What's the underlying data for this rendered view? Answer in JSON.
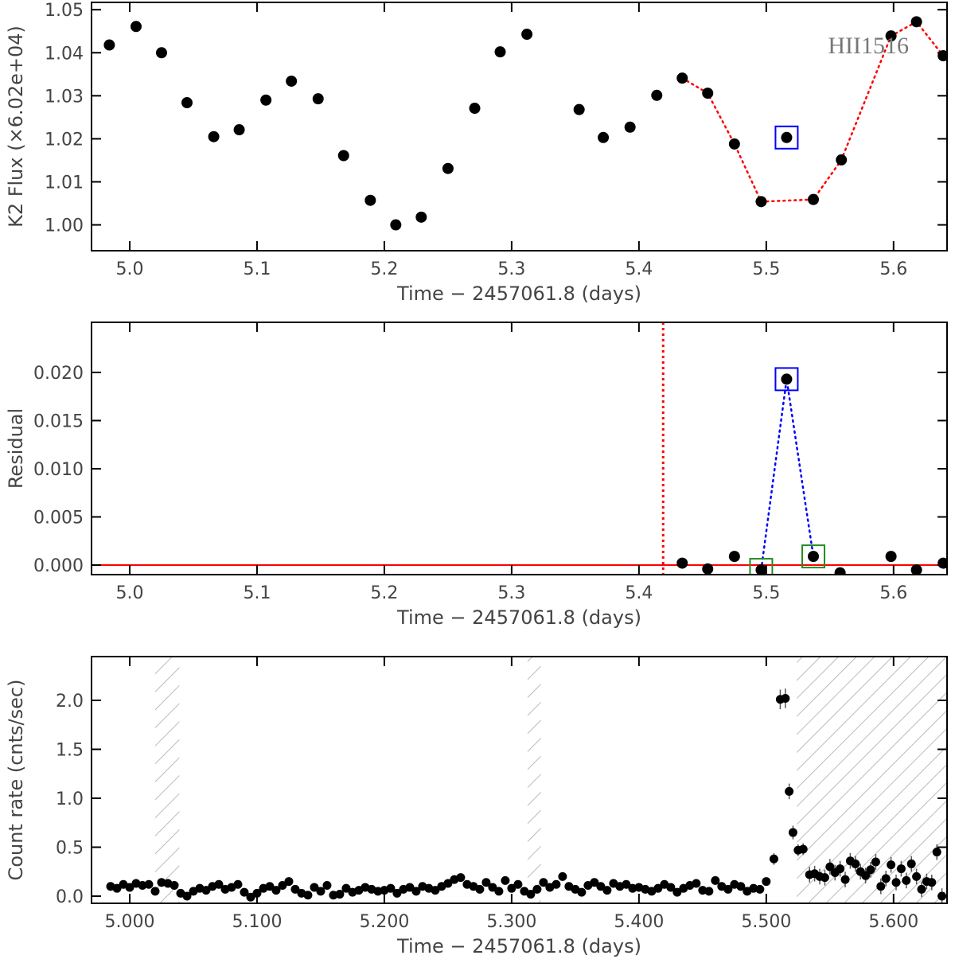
{
  "chart_data": [
    {
      "type": "scatter",
      "ylabel": "K2 Flux (×6.02e+04)",
      "xlabel": "Time − 2457061.8 (days)",
      "annotation": "HII1516",
      "xlim": [
        4.97,
        5.642
      ],
      "ylim": [
        0.994,
        1.0517
      ],
      "xticks": [
        {
          "value": 5,
          "label": "5.0"
        },
        5.1,
        5.2,
        5.3,
        5.4,
        5.5,
        5.6
      ],
      "yticks": [
        {
          "value": 1,
          "label": "1.00"
        },
        1.01,
        1.02,
        1.03,
        1.04,
        1.05
      ],
      "series": [
        {
          "color": "#000000",
          "x": [
            4.984,
            5.005,
            5.025,
            5.045,
            5.066,
            5.086,
            5.107,
            5.127,
            5.148,
            5.168,
            5.189,
            5.209,
            5.229,
            5.25,
            5.271,
            5.291,
            5.312,
            5.353,
            5.372,
            5.393,
            5.414,
            5.434,
            5.454,
            5.475,
            5.496,
            5.516,
            5.537,
            5.559,
            5.598,
            5.618,
            5.639
          ],
          "values": [
            1.0418,
            1.0461,
            1.04,
            1.0284,
            1.0205,
            1.0221,
            1.029,
            1.0334,
            1.0293,
            1.0161,
            1.0057,
            1.0,
            1.0018,
            1.0131,
            1.0271,
            1.0402,
            1.0443,
            1.0268,
            1.0203,
            1.0227,
            1.0301,
            1.0341,
            1.0306,
            1.0188,
            1.0054,
            1.0203,
            1.0059,
            1.0151,
            1.0439,
            1.0472,
            1.0393
          ]
        },
        {
          "color": "#ff0000",
          "line": "dotted",
          "x": [
            5.434,
            5.454,
            5.475,
            5.496,
            5.537,
            5.559,
            5.598,
            5.618,
            5.639
          ],
          "values": [
            1.0341,
            1.0306,
            1.0188,
            1.0054,
            1.0059,
            1.0151,
            1.0439,
            1.0472,
            1.0393
          ]
        }
      ],
      "boxes": [
        {
          "x": 5.516,
          "y": 1.0203,
          "color": "#0000ff"
        }
      ]
    },
    {
      "type": "scatter",
      "ylabel": "Residual",
      "xlabel": "Time − 2457061.8 (days)",
      "xlim": [
        4.97,
        5.642
      ],
      "ylim": [
        -0.00099,
        0.0252
      ],
      "xticks": [
        {
          "value": 5,
          "label": "5.0"
        },
        5.1,
        5.2,
        5.3,
        5.4,
        5.5,
        5.6
      ],
      "yticks": [
        {
          "value": 0,
          "label": "0.000"
        },
        0.005,
        {
          "value": 0.01,
          "label": "0.010"
        },
        0.015,
        {
          "value": 0.02,
          "label": "0.020"
        }
      ],
      "hlines": [
        {
          "y": 0,
          "color": "#ff0000"
        }
      ],
      "vlines": [
        {
          "x": 5.419,
          "color": "#ff0000",
          "line": "dotted"
        }
      ],
      "series": [
        {
          "color": "#000000",
          "x": [
            5.434,
            5.454,
            5.475,
            5.496,
            5.516,
            5.537,
            5.558,
            5.598,
            5.618,
            5.639
          ],
          "values": [
            0.0002,
            -0.0004,
            0.0009,
            -0.0005,
            0.0193,
            0.0009,
            -0.0008,
            0.0009,
            -0.0005,
            0.0002
          ]
        },
        {
          "color": "#0000ff",
          "line": "dotted",
          "x": [
            5.496,
            5.516,
            5.537
          ],
          "values": [
            -0.0005,
            0.0193,
            0.0009
          ]
        }
      ],
      "boxes": [
        {
          "x": 5.516,
          "y": 0.0193,
          "color": "#0000ff"
        },
        {
          "x": 5.496,
          "y": -0.0005,
          "color": "#228b22"
        },
        {
          "x": 5.537,
          "y": 0.0009,
          "color": "#228b22"
        }
      ]
    },
    {
      "type": "scatter",
      "ylabel": "Count rate (cnts/sec)",
      "xlabel": "Time − 2457061.8 (days)",
      "xlim": [
        4.97,
        5.642
      ],
      "ylim": [
        -0.073,
        2.447
      ],
      "xticks": [
        {
          "value": 5,
          "label": "5.000"
        },
        {
          "value": 5.1,
          "label": "5.100"
        },
        {
          "value": 5.2,
          "label": "5.200"
        },
        {
          "value": 5.3,
          "label": "5.300"
        },
        {
          "value": 5.4,
          "label": "5.400"
        },
        {
          "value": 5.5,
          "label": "5.500"
        },
        {
          "value": 5.6,
          "label": "5.600"
        }
      ],
      "yticks": [
        {
          "value": 0,
          "label": "0.0"
        },
        0.5,
        {
          "value": 1,
          "label": "1.0"
        },
        1.5,
        {
          "value": 2,
          "label": "2.0"
        }
      ],
      "shaded": [
        [
          5.02,
          5.039
        ],
        [
          5.3125,
          5.323
        ],
        [
          5.524,
          5.642
        ]
      ],
      "series": [
        {
          "color": "#000000",
          "x": [
            4.985,
            4.99,
            4.995,
            5,
            5.005,
            5.01,
            5.015,
            5.02,
            5.025,
            5.03,
            5.035,
            5.04,
            5.045,
            5.05,
            5.055,
            5.06,
            5.065,
            5.07,
            5.075,
            5.08,
            5.085,
            5.09,
            5.095,
            5.1,
            5.105,
            5.11,
            5.115,
            5.12,
            5.125,
            5.13,
            5.135,
            5.14,
            5.145,
            5.15,
            5.155,
            5.16,
            5.165,
            5.17,
            5.175,
            5.18,
            5.185,
            5.19,
            5.195,
            5.2,
            5.205,
            5.21,
            5.215,
            5.22,
            5.225,
            5.23,
            5.235,
            5.24,
            5.245,
            5.25,
            5.255,
            5.26,
            5.265,
            5.27,
            5.275,
            5.28,
            5.285,
            5.29,
            5.295,
            5.3,
            5.305,
            5.31,
            5.315,
            5.32,
            5.325,
            5.33,
            5.335,
            5.34,
            5.345,
            5.35,
            5.355,
            5.36,
            5.365,
            5.37,
            5.375,
            5.38,
            5.385,
            5.39,
            5.395,
            5.4,
            5.405,
            5.41,
            5.415,
            5.42,
            5.425,
            5.43,
            5.435,
            5.44,
            5.445,
            5.45,
            5.455,
            5.46,
            5.465,
            5.47,
            5.475,
            5.48,
            5.485,
            5.49,
            5.495,
            5.5,
            5.506,
            5.511,
            5.515,
            5.518,
            5.521,
            5.525,
            5.529,
            5.534,
            5.538,
            5.542,
            5.546,
            5.55,
            5.554,
            5.558,
            5.562,
            5.566,
            5.57,
            5.574,
            5.578,
            5.582,
            5.586,
            5.59,
            5.594,
            5.598,
            5.602,
            5.606,
            5.61,
            5.614,
            5.618,
            5.622,
            5.626,
            5.63,
            5.634,
            5.638
          ],
          "values": [
            0.1,
            0.08,
            0.12,
            0.09,
            0.13,
            0.11,
            0.12,
            0.05,
            0.14,
            0.13,
            0.11,
            0.03,
            0.0,
            0.05,
            0.08,
            0.06,
            0.1,
            0.12,
            0.07,
            0.09,
            0.12,
            0.04,
            -0.01,
            0.03,
            0.08,
            0.1,
            0.06,
            0.11,
            0.15,
            0.07,
            0.03,
            0.01,
            0.09,
            0.05,
            0.11,
            0.01,
            0.02,
            0.08,
            0.04,
            0.06,
            0.09,
            0.07,
            0.05,
            0.06,
            0.08,
            0.03,
            0.07,
            0.09,
            0.05,
            0.1,
            0.08,
            0.06,
            0.1,
            0.13,
            0.17,
            0.19,
            0.12,
            0.1,
            0.07,
            0.14,
            0.09,
            0.05,
            0.16,
            0.08,
            0.12,
            0.05,
            0.02,
            0.07,
            0.14,
            0.09,
            0.12,
            0.2,
            0.1,
            0.07,
            0.04,
            0.11,
            0.14,
            0.1,
            0.06,
            0.13,
            0.1,
            0.12,
            0.08,
            0.09,
            0.07,
            0.05,
            0.08,
            0.12,
            0.09,
            0.04,
            0.08,
            0.11,
            0.13,
            0.06,
            0.05,
            0.16,
            0.1,
            0.07,
            0.12,
            0.1,
            0.05,
            0.08,
            0.07,
            0.15,
            0.38,
            2.01,
            2.02,
            1.07,
            0.65,
            0.47,
            0.48,
            0.22,
            0.23,
            0.2,
            0.19,
            0.3,
            0.24,
            0.28,
            0.17,
            0.36,
            0.33,
            0.25,
            0.21,
            0.27,
            0.35,
            0.1,
            0.18,
            0.32,
            0.14,
            0.28,
            0.16,
            0.33,
            0.2,
            0.07,
            0.15,
            0.14,
            0.45,
            0.0
          ],
          "errors": [
            0.03,
            0.03,
            0.03,
            0.03,
            0.03,
            0.03,
            0.03,
            0.03,
            0.03,
            0.03,
            0.03,
            0.03,
            0.03,
            0.03,
            0.03,
            0.03,
            0.03,
            0.03,
            0.03,
            0.03,
            0.03,
            0.03,
            0.03,
            0.03,
            0.03,
            0.03,
            0.03,
            0.03,
            0.03,
            0.03,
            0.03,
            0.03,
            0.03,
            0.03,
            0.03,
            0.03,
            0.03,
            0.03,
            0.03,
            0.03,
            0.03,
            0.03,
            0.03,
            0.03,
            0.03,
            0.03,
            0.03,
            0.03,
            0.03,
            0.03,
            0.03,
            0.03,
            0.03,
            0.03,
            0.03,
            0.03,
            0.03,
            0.03,
            0.03,
            0.03,
            0.03,
            0.03,
            0.03,
            0.03,
            0.03,
            0.03,
            0.03,
            0.03,
            0.03,
            0.03,
            0.03,
            0.03,
            0.03,
            0.03,
            0.03,
            0.03,
            0.03,
            0.03,
            0.03,
            0.03,
            0.03,
            0.03,
            0.03,
            0.03,
            0.03,
            0.03,
            0.03,
            0.03,
            0.03,
            0.03,
            0.03,
            0.03,
            0.03,
            0.03,
            0.03,
            0.03,
            0.03,
            0.03,
            0.03,
            0.03,
            0.03,
            0.03,
            0.03,
            0.03,
            0.06,
            0.1,
            0.1,
            0.08,
            0.07,
            0.06,
            0.06,
            0.08,
            0.08,
            0.08,
            0.08,
            0.08,
            0.08,
            0.08,
            0.08,
            0.08,
            0.08,
            0.08,
            0.08,
            0.08,
            0.08,
            0.08,
            0.08,
            0.08,
            0.08,
            0.08,
            0.08,
            0.08,
            0.08,
            0.08,
            0.08,
            0.08,
            0.08,
            0.08
          ]
        }
      ]
    }
  ]
}
